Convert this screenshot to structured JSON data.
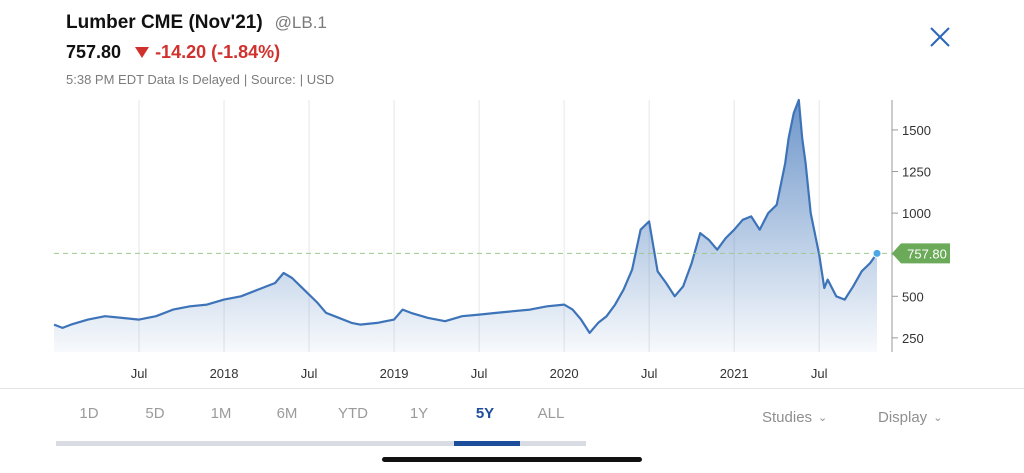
{
  "header": {
    "title": "Lumber CME (Nov'21)",
    "symbol": "@LB.1",
    "price": "757.80",
    "change": "-14.20 (-1.84%)",
    "status": "5:38 PM EDT Data Is Delayed",
    "source": "| Source:",
    "currency": "| USD"
  },
  "close_icon": "close-x-icon",
  "colors": {
    "line": "#3d73b8",
    "down": "#d0312d",
    "last_price_tag": "#6aaa58",
    "active_range": "#1d4e9c"
  },
  "ranges": [
    "1D",
    "5D",
    "1M",
    "6M",
    "YTD",
    "1Y",
    "5Y",
    "ALL"
  ],
  "active_range": "5Y",
  "menus": {
    "studies": "Studies",
    "display": "Display"
  },
  "chart_data": {
    "type": "area",
    "x_tick_labels": [
      "Jul",
      "2018",
      "Jul",
      "2019",
      "Jul",
      "2020",
      "Jul",
      "2021",
      "Jul"
    ],
    "y_tick_labels": [
      "250",
      "500",
      "750",
      "1000",
      "1250",
      "1500"
    ],
    "ylim": [
      165,
      1680
    ],
    "last_price": 757.8,
    "last_price_label": "757.80",
    "grid": "vertical",
    "series": [
      {
        "x": [
          2017.0,
          2017.05,
          2017.1,
          2017.2,
          2017.3,
          2017.4,
          2017.5,
          2017.6,
          2017.7,
          2017.8,
          2017.9,
          2018.0,
          2018.1,
          2018.2,
          2018.3,
          2018.35,
          2018.4,
          2018.45,
          2018.55,
          2018.6,
          2018.65,
          2018.75,
          2018.8,
          2018.9,
          2019.0,
          2019.05,
          2019.1,
          2019.2,
          2019.3,
          2019.4,
          2019.5,
          2019.6,
          2019.7,
          2019.8,
          2019.9,
          2020.0,
          2020.05,
          2020.1,
          2020.15,
          2020.2,
          2020.25,
          2020.3,
          2020.35,
          2020.4,
          2020.45,
          2020.5,
          2020.55,
          2020.6,
          2020.65,
          2020.7,
          2020.75,
          2020.8,
          2020.85,
          2020.9,
          2020.95,
          2021.0,
          2021.05,
          2021.1,
          2021.15,
          2021.2,
          2021.25,
          2021.3,
          2021.32,
          2021.35,
          2021.38,
          2021.4,
          2021.42,
          2021.45,
          2021.5,
          2021.53,
          2021.55,
          2021.6,
          2021.65,
          2021.7,
          2021.75,
          2021.8,
          2021.84
        ],
        "y": [
          330,
          310,
          330,
          360,
          380,
          370,
          360,
          380,
          420,
          440,
          450,
          480,
          500,
          540,
          580,
          640,
          610,
          560,
          460,
          400,
          380,
          340,
          330,
          340,
          360,
          420,
          400,
          370,
          350,
          380,
          390,
          400,
          410,
          420,
          440,
          450,
          420,
          360,
          280,
          340,
          380,
          450,
          540,
          660,
          900,
          950,
          650,
          580,
          500,
          560,
          700,
          880,
          840,
          780,
          850,
          900,
          960,
          980,
          900,
          1000,
          1050,
          1300,
          1450,
          1600,
          1680,
          1450,
          1300,
          1000,
          750,
          550,
          600,
          500,
          480,
          560,
          650,
          700,
          757.8
        ]
      }
    ]
  }
}
